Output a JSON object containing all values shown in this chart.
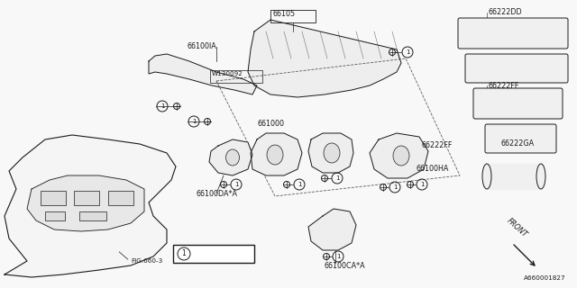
{
  "bg_color": "#f8f8f8",
  "line_color": "#1a1a1a",
  "fig_width": 6.4,
  "fig_height": 3.2,
  "dpi": 100,
  "label_fontsize": 5.8,
  "small_fontsize": 5.2,
  "labels_right": {
    "66222DD": [
      0.845,
      0.935
    ],
    "66222FF": [
      0.845,
      0.615
    ],
    "66222GA": [
      0.845,
      0.395
    ]
  },
  "front_text": "FRONT",
  "part_number": "A660001827"
}
